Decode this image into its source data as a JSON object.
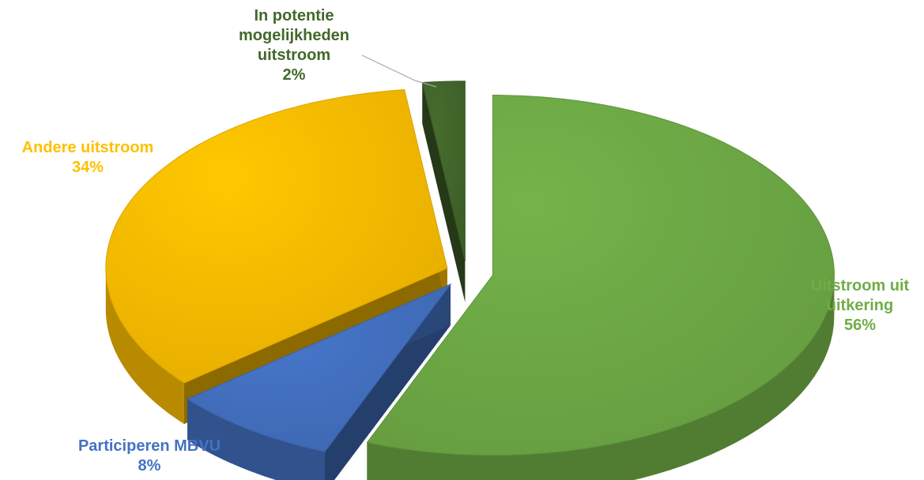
{
  "chart_data": {
    "type": "pie",
    "title": "",
    "exploded": true,
    "three_d": true,
    "slices": [
      {
        "name": "Uitstroom uit uitkering",
        "label_lines": [
          "Uitstroom uit",
          "uitkering"
        ],
        "value": 56,
        "percent_label": "56%",
        "color": "#70AD47"
      },
      {
        "name": "Participeren MBVU",
        "label_lines": [
          "Participeren MBVU"
        ],
        "value": 8,
        "percent_label": "8%",
        "color": "#4472C4"
      },
      {
        "name": "Andere uitstroom",
        "label_lines": [
          "Andere uitstroom"
        ],
        "value": 34,
        "percent_label": "34%",
        "color": "#FFC000"
      },
      {
        "name": "In potentie mogelijkheden uitstroom",
        "label_lines": [
          "In potentie",
          "mogelijkheden",
          "uitstroom"
        ],
        "value": 2,
        "percent_label": "2%",
        "color": "#43682B"
      }
    ]
  }
}
